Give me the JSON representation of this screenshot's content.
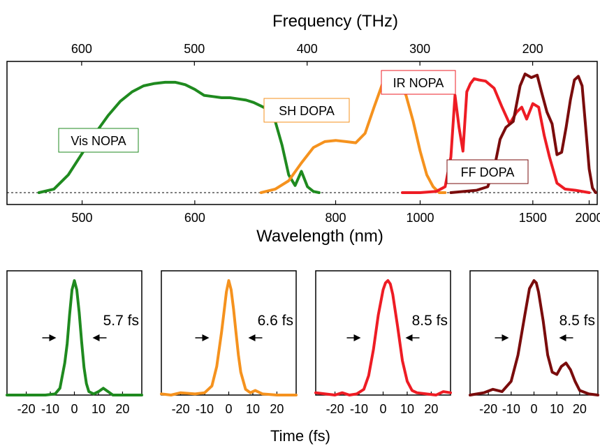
{
  "chart_data": [
    {
      "type": "line",
      "panel": "spectra",
      "xlabel": "Wavelength (nm)",
      "x2label": "Frequency (THz)",
      "xticks": [
        500,
        600,
        800,
        1000,
        1500,
        2000
      ],
      "x2ticks": [
        600,
        500,
        400,
        300,
        200
      ],
      "xlim": [
        450,
        2100
      ],
      "ylim": [
        0,
        1.05
      ],
      "colors": {
        "vis": "#1f8a1f",
        "sh": "#f5921e",
        "ir": "#ee1c24",
        "ff": "#7a0c0c"
      },
      "series": [
        {
          "name": "Vis NOPA",
          "color": "#1f8a1f",
          "x": [
            470,
            480,
            490,
            500,
            510,
            520,
            530,
            540,
            550,
            560,
            570,
            580,
            590,
            600,
            610,
            620,
            630,
            640,
            650,
            660,
            670,
            680,
            690,
            700,
            710,
            720,
            730,
            740,
            750,
            760,
            770
          ],
          "y": [
            0.0,
            0.03,
            0.15,
            0.33,
            0.5,
            0.65,
            0.77,
            0.85,
            0.9,
            0.92,
            0.93,
            0.93,
            0.91,
            0.87,
            0.82,
            0.81,
            0.8,
            0.8,
            0.79,
            0.78,
            0.76,
            0.73,
            0.7,
            0.6,
            0.4,
            0.15,
            0.06,
            0.18,
            0.05,
            0.01,
            0.0
          ]
        },
        {
          "name": "SH DOPA",
          "color": "#f5921e",
          "x": [
            680,
            700,
            720,
            740,
            760,
            780,
            800,
            820,
            840,
            860,
            880,
            900,
            920,
            940,
            960,
            980,
            1000,
            1020,
            1040,
            1060,
            1080
          ],
          "y": [
            0.0,
            0.03,
            0.1,
            0.25,
            0.38,
            0.43,
            0.44,
            0.43,
            0.42,
            0.5,
            0.72,
            0.92,
            1.0,
            0.95,
            0.82,
            0.6,
            0.35,
            0.15,
            0.05,
            0.0,
            0.0
          ]
        },
        {
          "name": "IR NOPA",
          "color": "#ee1c24",
          "x": [
            950,
            1000,
            1050,
            1080,
            1100,
            1115,
            1130,
            1145,
            1160,
            1175,
            1190,
            1210,
            1240,
            1280,
            1320,
            1360,
            1400,
            1430,
            1460,
            1500,
            1540,
            1580,
            1620,
            1680,
            1750,
            1850,
            2000
          ],
          "y": [
            0.0,
            0.0,
            0.01,
            0.05,
            0.3,
            0.82,
            0.55,
            0.35,
            0.85,
            0.92,
            0.96,
            0.95,
            0.94,
            0.88,
            0.72,
            0.58,
            0.68,
            0.72,
            0.62,
            0.75,
            0.72,
            0.48,
            0.3,
            0.08,
            0.03,
            0.02,
            0.0
          ]
        },
        {
          "name": "FF DOPA",
          "color": "#7a0c0c",
          "x": [
            1100,
            1150,
            1200,
            1250,
            1280,
            1310,
            1340,
            1380,
            1420,
            1450,
            1490,
            1530,
            1560,
            1600,
            1640,
            1680,
            1720,
            1760,
            1800,
            1840,
            1880,
            1920,
            1960,
            2000,
            2040,
            2080
          ],
          "y": [
            0.0,
            0.01,
            0.02,
            0.05,
            0.2,
            0.45,
            0.55,
            0.6,
            0.9,
            1.0,
            0.97,
            0.99,
            0.85,
            0.68,
            0.58,
            0.32,
            0.34,
            0.55,
            0.78,
            0.95,
            0.98,
            0.9,
            0.55,
            0.2,
            0.04,
            0.0
          ]
        }
      ],
      "annotations": [
        "Vis NOPA",
        "SH DOPA",
        "IR NOPA",
        "FF DOPA"
      ]
    },
    {
      "type": "line",
      "panel": "pulses",
      "xlabel": "Time (fs)",
      "xticks": [
        -20,
        -10,
        0,
        10,
        20
      ],
      "xlim": [
        -28,
        28
      ],
      "ylim": [
        0,
        1.05
      ],
      "pulses": [
        {
          "color": "#1f8a1f",
          "label": "5.7 fs",
          "x": [
            -28,
            -20,
            -12,
            -8,
            -6,
            -4,
            -3,
            -2,
            -1,
            0,
            1,
            2,
            3,
            4,
            5,
            6,
            8,
            10,
            12,
            14,
            16,
            20,
            28
          ],
          "y": [
            0,
            0,
            0,
            0.01,
            0.06,
            0.28,
            0.45,
            0.7,
            0.92,
            1.0,
            0.92,
            0.72,
            0.47,
            0.24,
            0.1,
            0.03,
            0.01,
            0.03,
            0.06,
            0.03,
            0.0,
            0,
            0
          ]
        },
        {
          "color": "#f5921e",
          "label": "6.6 fs",
          "x": [
            -28,
            -24,
            -20,
            -14,
            -10,
            -7,
            -5,
            -3,
            -2,
            -1,
            0,
            1,
            2,
            3,
            4,
            5,
            7,
            9,
            11,
            14,
            20,
            28
          ],
          "y": [
            0.01,
            0.0,
            0.02,
            0.01,
            0.02,
            0.08,
            0.25,
            0.55,
            0.72,
            0.9,
            1.0,
            0.92,
            0.75,
            0.55,
            0.35,
            0.2,
            0.05,
            0.02,
            0.04,
            0.01,
            0.0,
            0
          ]
        },
        {
          "color": "#ee1c24",
          "label": "8.5 fs",
          "x": [
            -28,
            -24,
            -20,
            -17,
            -14,
            -11,
            -8,
            -6,
            -4,
            -2,
            0,
            1,
            2,
            3,
            4,
            6,
            8,
            10,
            12,
            14,
            18,
            22,
            25,
            28
          ],
          "y": [
            0.02,
            0.01,
            0.0,
            0.02,
            0.0,
            0.01,
            0.05,
            0.17,
            0.4,
            0.7,
            0.92,
            0.98,
            1.0,
            0.97,
            0.88,
            0.6,
            0.3,
            0.12,
            0.04,
            0.02,
            0.01,
            0.0,
            0.03,
            0.02
          ]
        },
        {
          "color": "#7a0c0c",
          "label": "8.5 fs",
          "x": [
            -28,
            -22,
            -18,
            -14,
            -10,
            -7,
            -4,
            -2,
            0,
            1,
            2,
            4,
            6,
            8,
            10,
            12,
            14,
            16,
            18,
            20,
            24,
            28
          ],
          "y": [
            0.0,
            0.02,
            0.05,
            0.03,
            0.12,
            0.35,
            0.7,
            0.93,
            1.0,
            0.98,
            0.9,
            0.65,
            0.35,
            0.2,
            0.18,
            0.25,
            0.28,
            0.22,
            0.12,
            0.04,
            0.01,
            0.0
          ]
        }
      ]
    }
  ]
}
